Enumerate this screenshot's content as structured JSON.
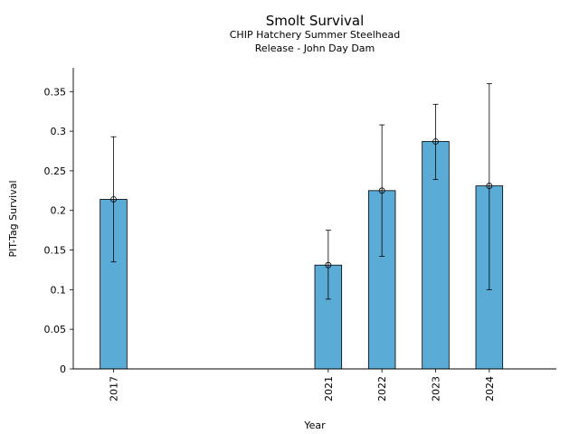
{
  "chart_data": {
    "type": "bar",
    "title": "Smolt Survival",
    "subtitle_lines": [
      "CHIP Hatchery Summer Steelhead",
      "Release - John Day Dam"
    ],
    "xlabel": "Year",
    "ylabel": "PIT-Tag Survival",
    "xlim": [
      2016.25,
      2025.25
    ],
    "ylim": [
      0,
      0.38
    ],
    "y_ticks": [
      0,
      0.05,
      0.1,
      0.15,
      0.2,
      0.25,
      0.3,
      0.35
    ],
    "y_tick_labels": [
      "0",
      "0.05",
      "0.1",
      "0.15",
      "0.2",
      "0.25",
      "0.3",
      "0.35"
    ],
    "bar_color": "#5aabd6",
    "grid": false,
    "points": [
      {
        "year": 2017,
        "label": "2017",
        "value": 0.214,
        "lower": 0.135,
        "upper": 0.293
      },
      {
        "year": 2021,
        "label": "2021",
        "value": 0.131,
        "lower": 0.088,
        "upper": 0.175
      },
      {
        "year": 2022,
        "label": "2022",
        "value": 0.225,
        "lower": 0.142,
        "upper": 0.308
      },
      {
        "year": 2023,
        "label": "2023",
        "value": 0.287,
        "lower": 0.239,
        "upper": 0.334
      },
      {
        "year": 2024,
        "label": "2024",
        "value": 0.231,
        "lower": 0.1,
        "upper": 0.36
      }
    ]
  }
}
